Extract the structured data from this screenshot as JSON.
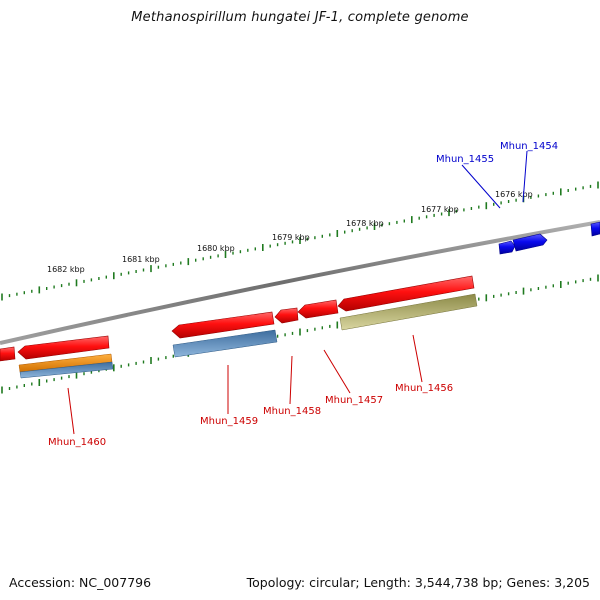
{
  "header": {
    "title": "Methanospirillum hungatei JF-1, complete genome"
  },
  "footer": {
    "accession": "Accession: NC_007796",
    "summary": "Topology: circular; Length: 3,544,738 bp; Genes: 3,205"
  },
  "ticks": [
    {
      "label": "1676 kbp"
    },
    {
      "label": "1677 kbp"
    },
    {
      "label": "1678 kbp"
    },
    {
      "label": "1679 kbp"
    },
    {
      "label": "1680 kbp"
    },
    {
      "label": "1681 kbp"
    },
    {
      "label": "1682 kbp"
    }
  ],
  "gene_labels": [
    {
      "text": "Mhun_1454",
      "color": "#0000cc"
    },
    {
      "text": "Mhun_1455",
      "color": "#0000cc"
    },
    {
      "text": "Mhun_1456",
      "color": "#cc0000"
    },
    {
      "text": "Mhun_1457",
      "color": "#cc0000"
    },
    {
      "text": "Mhun_1458",
      "color": "#cc0000"
    },
    {
      "text": "Mhun_1459",
      "color": "#cc0000"
    },
    {
      "text": "Mhun_1460",
      "color": "#cc0000"
    }
  ],
  "colors": {
    "backbone": "#8a8a8a",
    "tick_green": "#1f7a1f",
    "gene_red": "#ee1111",
    "gene_blue": "#1a1aee",
    "feature_orange": "#f08c10",
    "feature_steelblue": "#4a7fb5",
    "feature_khaki": "#bdb76b",
    "label_red": "#cc0000",
    "label_blue": "#0000cc"
  }
}
